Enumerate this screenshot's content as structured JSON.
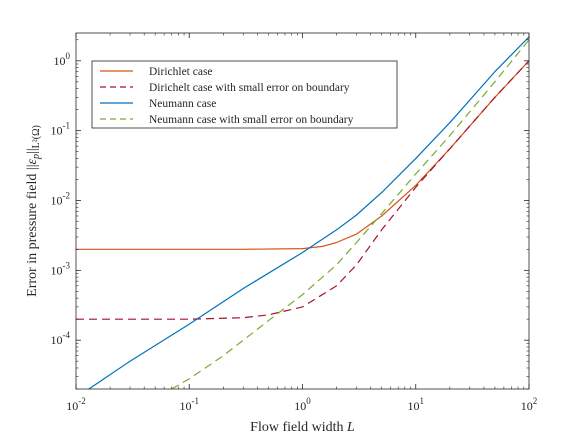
{
  "chart_data": {
    "type": "line",
    "xscale": "log",
    "yscale": "log",
    "xlim": [
      0.01,
      100
    ],
    "ylim": [
      2e-05,
      2.5
    ],
    "x_ticks": [
      {
        "value": 0.01,
        "base": "10",
        "exp": "-2"
      },
      {
        "value": 0.1,
        "base": "10",
        "exp": "-1"
      },
      {
        "value": 1,
        "base": "10",
        "exp": "0"
      },
      {
        "value": 10,
        "base": "10",
        "exp": "1"
      },
      {
        "value": 100,
        "base": "10",
        "exp": "2"
      }
    ],
    "y_ticks": [
      {
        "value": 0.0001,
        "base": "10",
        "exp": "-4"
      },
      {
        "value": 0.001,
        "base": "10",
        "exp": "-3"
      },
      {
        "value": 0.01,
        "base": "10",
        "exp": "-2"
      },
      {
        "value": 0.1,
        "base": "10",
        "exp": "-1"
      },
      {
        "value": 1,
        "base": "10",
        "exp": "0"
      }
    ],
    "xlabel": {
      "text": "Flow field width",
      "symbol": "L"
    },
    "ylabel": {
      "text": "Error in pressure field",
      "norm_open": "||",
      "symbol": "ε",
      "sub": "p",
      "norm_close": "||",
      "space_sub": "L²(Ω)"
    },
    "grid": false,
    "legend_position": "top-left",
    "series": [
      {
        "name": "Dirichlet case",
        "color": "#d95319",
        "dash": "solid",
        "x": [
          0.01,
          0.03,
          0.1,
          0.3,
          1,
          1.5,
          2,
          3,
          5,
          10,
          20,
          50,
          100
        ],
        "y": [
          0.002,
          0.002,
          0.002,
          0.002,
          0.00205,
          0.0022,
          0.0025,
          0.0033,
          0.006,
          0.0165,
          0.055,
          0.3,
          1.0
        ]
      },
      {
        "name": "Dirichelt case with small error on boundary",
        "color": "#a2142f",
        "dash": "dashed",
        "x": [
          0.01,
          0.03,
          0.1,
          0.3,
          0.5,
          1,
          2,
          3,
          5,
          10,
          20,
          50,
          100
        ],
        "y": [
          0.0002,
          0.0002,
          0.0002,
          0.00021,
          0.00023,
          0.0003,
          0.0006,
          0.0012,
          0.0038,
          0.0155,
          0.055,
          0.3,
          1.0
        ]
      },
      {
        "name": "Neumann case",
        "color": "#0072bd",
        "dash": "solid",
        "x": [
          0.01,
          0.03,
          0.1,
          0.3,
          1,
          2,
          3,
          5,
          10,
          20,
          50,
          100
        ],
        "y": [
          1.5e-05,
          5e-05,
          0.00017,
          0.00055,
          0.0018,
          0.0038,
          0.0062,
          0.013,
          0.04,
          0.13,
          0.7,
          2.2
        ]
      },
      {
        "name": "Neumann case with small error on boundary",
        "color": "#77ac30",
        "dash": "dashed",
        "x": [
          0.07,
          0.1,
          0.2,
          0.5,
          1,
          2,
          3,
          5,
          10,
          20,
          50,
          100
        ],
        "y": [
          2e-05,
          2.8e-05,
          6e-05,
          0.00019,
          0.00045,
          0.0012,
          0.0025,
          0.0065,
          0.024,
          0.085,
          0.5,
          2.0
        ]
      }
    ]
  }
}
